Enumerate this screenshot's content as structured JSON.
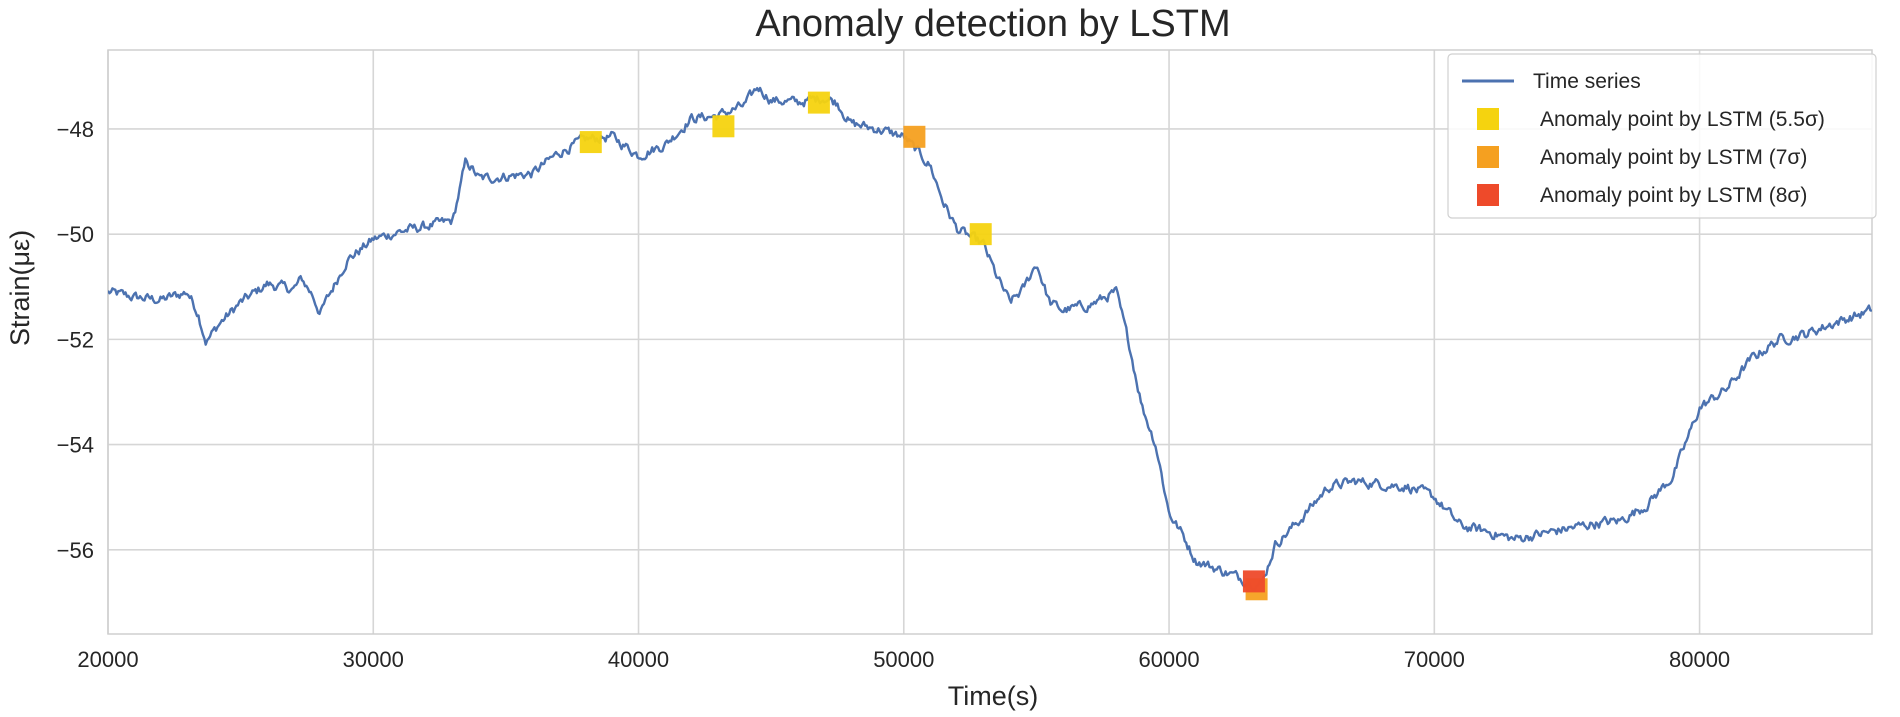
{
  "chart_data": {
    "type": "line",
    "title": "Anomaly detection by LSTM",
    "xlabel": "Time(s)",
    "ylabel": "Strain(με)",
    "xlim": [
      20000,
      86500
    ],
    "ylim": [
      -57.6,
      -46.5
    ],
    "xticks": [
      20000,
      30000,
      40000,
      50000,
      60000,
      70000,
      80000
    ],
    "xtick_labels": [
      "20000",
      "30000",
      "40000",
      "50000",
      "60000",
      "70000",
      "80000"
    ],
    "yticks": [
      -56,
      -54,
      -52,
      -50,
      -48
    ],
    "ytick_labels": [
      "−56",
      "−54",
      "−52",
      "−50",
      "−48"
    ],
    "grid": true,
    "legend_position": "top-right",
    "colors": {
      "line": "#4c72b0",
      "grid": "#d6d6d6",
      "frame": "#cfcfcf",
      "sigma_5_5": "#f5d30f",
      "sigma_7": "#f5a020",
      "sigma_8": "#ee4a2a"
    },
    "series": [
      {
        "name": "Time series",
        "anchors": [
          [
            20000,
            -51.1
          ],
          [
            21000,
            -51.2
          ],
          [
            22000,
            -51.25
          ],
          [
            23000,
            -51.1
          ],
          [
            23400,
            -51.5
          ],
          [
            23700,
            -52.05
          ],
          [
            24200,
            -51.7
          ],
          [
            25000,
            -51.3
          ],
          [
            26000,
            -50.95
          ],
          [
            27000,
            -51.05
          ],
          [
            27300,
            -50.85
          ],
          [
            27700,
            -51.15
          ],
          [
            28000,
            -51.5
          ],
          [
            28500,
            -51.0
          ],
          [
            29000,
            -50.5
          ],
          [
            30000,
            -50.1
          ],
          [
            31000,
            -49.95
          ],
          [
            32000,
            -49.85
          ],
          [
            33000,
            -49.75
          ],
          [
            33500,
            -48.6
          ],
          [
            34000,
            -48.95
          ],
          [
            35000,
            -48.9
          ],
          [
            36000,
            -48.85
          ],
          [
            37000,
            -48.45
          ],
          [
            38000,
            -48.2
          ],
          [
            39000,
            -48.15
          ],
          [
            40000,
            -48.5
          ],
          [
            41000,
            -48.3
          ],
          [
            42000,
            -47.8
          ],
          [
            43000,
            -47.75
          ],
          [
            44000,
            -47.55
          ],
          [
            44500,
            -47.2
          ],
          [
            45000,
            -47.45
          ],
          [
            46000,
            -47.5
          ],
          [
            47000,
            -47.4
          ],
          [
            47500,
            -47.5
          ],
          [
            48000,
            -47.9
          ],
          [
            49000,
            -48.0
          ],
          [
            50000,
            -48.15
          ],
          [
            51000,
            -48.7
          ],
          [
            51500,
            -49.4
          ],
          [
            52000,
            -49.9
          ],
          [
            53000,
            -50.2
          ],
          [
            53500,
            -50.8
          ],
          [
            54000,
            -51.3
          ],
          [
            54500,
            -51.05
          ],
          [
            55000,
            -50.55
          ],
          [
            55500,
            -51.3
          ],
          [
            56000,
            -51.45
          ],
          [
            57000,
            -51.35
          ],
          [
            58000,
            -51.1
          ],
          [
            58500,
            -52.1
          ],
          [
            59000,
            -53.3
          ],
          [
            59500,
            -54.0
          ],
          [
            60000,
            -55.3
          ],
          [
            60500,
            -55.7
          ],
          [
            61000,
            -56.2
          ],
          [
            62000,
            -56.4
          ],
          [
            63000,
            -56.6
          ],
          [
            63500,
            -56.65
          ],
          [
            64000,
            -55.9
          ],
          [
            65000,
            -55.4
          ],
          [
            66000,
            -54.8
          ],
          [
            67000,
            -54.7
          ],
          [
            68000,
            -54.75
          ],
          [
            69000,
            -54.8
          ],
          [
            70000,
            -55.0
          ],
          [
            71000,
            -55.55
          ],
          [
            72000,
            -55.65
          ],
          [
            73000,
            -55.8
          ],
          [
            74000,
            -55.7
          ],
          [
            75000,
            -55.6
          ],
          [
            76000,
            -55.5
          ],
          [
            77000,
            -55.45
          ],
          [
            78000,
            -55.15
          ],
          [
            79000,
            -54.6
          ],
          [
            80000,
            -53.3
          ],
          [
            81000,
            -52.95
          ],
          [
            82000,
            -52.35
          ],
          [
            83000,
            -52.0
          ],
          [
            84000,
            -51.9
          ],
          [
            85000,
            -51.7
          ],
          [
            86500,
            -51.45
          ]
        ]
      }
    ],
    "anomalies": [
      {
        "name": "Anomaly point by LSTM (5.5σ)",
        "color_key": "sigma_5_5",
        "points": [
          [
            38200,
            -48.25
          ],
          [
            43200,
            -47.95
          ],
          [
            46800,
            -47.5
          ],
          [
            52900,
            -50.0
          ]
        ]
      },
      {
        "name": "Anomaly point by LSTM (7σ)",
        "color_key": "sigma_7",
        "points": [
          [
            50400,
            -48.15
          ],
          [
            63300,
            -56.75
          ]
        ]
      },
      {
        "name": "Anomaly point by LSTM (8σ)",
        "color_key": "sigma_8",
        "points": [
          [
            63200,
            -56.6
          ]
        ]
      }
    ],
    "legend": [
      {
        "label": "Time series",
        "kind": "line",
        "color_key": "line"
      },
      {
        "label": "Anomaly point by LSTM (5.5σ)",
        "kind": "square",
        "color_key": "sigma_5_5"
      },
      {
        "label": "Anomaly point by LSTM (7σ)",
        "kind": "square",
        "color_key": "sigma_7"
      },
      {
        "label": "Anomaly point by LSTM (8σ)",
        "kind": "square",
        "color_key": "sigma_8"
      }
    ]
  }
}
